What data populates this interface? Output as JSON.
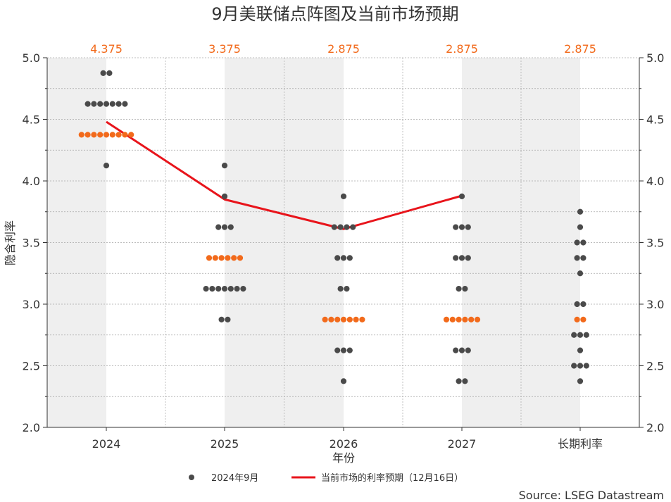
{
  "chart_data": {
    "type": "scatter",
    "title": "9月美联储点阵图及当前市场预期",
    "xlabel": "年份",
    "ylabel": "隐含利率",
    "categories": [
      "2024",
      "2025",
      "2026",
      "2027",
      "长期利率"
    ],
    "ylim": [
      2.0,
      5.0
    ],
    "yticks": [
      "2.0",
      "2.5",
      "3.0",
      "3.5",
      "4.0",
      "4.5",
      "5.0"
    ],
    "medians": [
      "4.375",
      "3.375",
      "2.875",
      "2.875",
      "2.875"
    ],
    "dots": [
      {
        "category": "2024",
        "counts": [
          [
            4.875,
            2
          ],
          [
            4.625,
            7
          ],
          [
            4.375,
            9
          ],
          [
            4.125,
            1
          ]
        ]
      },
      {
        "category": "2025",
        "counts": [
          [
            4.125,
            1
          ],
          [
            3.875,
            1
          ],
          [
            3.625,
            3
          ],
          [
            3.375,
            6
          ],
          [
            3.125,
            7
          ],
          [
            2.875,
            2
          ]
        ]
      },
      {
        "category": "2026",
        "counts": [
          [
            3.875,
            1
          ],
          [
            3.625,
            4
          ],
          [
            3.375,
            3
          ],
          [
            3.125,
            2
          ],
          [
            2.875,
            7
          ],
          [
            2.625,
            3
          ],
          [
            2.375,
            1
          ]
        ]
      },
      {
        "category": "2027",
        "counts": [
          [
            3.875,
            1
          ],
          [
            3.625,
            3
          ],
          [
            3.375,
            3
          ],
          [
            3.125,
            2
          ],
          [
            2.875,
            6
          ],
          [
            2.625,
            3
          ],
          [
            2.375,
            2
          ]
        ]
      },
      {
        "category": "长期利率",
        "counts": [
          [
            3.75,
            1
          ],
          [
            3.625,
            1
          ],
          [
            3.5,
            2
          ],
          [
            3.375,
            2
          ],
          [
            3.25,
            1
          ],
          [
            3.0,
            2
          ],
          [
            2.875,
            2
          ],
          [
            2.75,
            3
          ],
          [
            2.625,
            1
          ],
          [
            2.5,
            3
          ],
          [
            2.375,
            1
          ]
        ]
      }
    ],
    "series": [
      {
        "name": "2024年9月",
        "type": "scatter",
        "color": "#4a4a4a"
      },
      {
        "name": "当前市场的利率预期（12月16日）",
        "type": "line",
        "color": "#e8141b",
        "x": [
          "2024",
          "2025",
          "2026",
          "2027"
        ],
        "values": [
          4.48,
          3.85,
          3.61,
          3.88
        ]
      }
    ],
    "median_color": "#f26a1b",
    "grid": true,
    "legend_position": "bottom",
    "source": "Source: LSEG Datastream"
  }
}
